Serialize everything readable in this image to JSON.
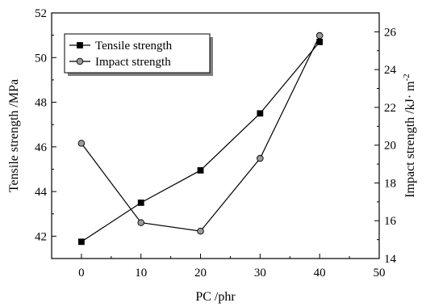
{
  "chart_data": {
    "type": "line",
    "x": [
      0,
      10,
      20,
      30,
      40
    ],
    "xlabel": "PC /phr",
    "xlim": [
      -5,
      50
    ],
    "xticks": [
      "0",
      "10",
      "20",
      "30",
      "40",
      "50"
    ],
    "y_left": {
      "label": "Tensile strength /MPa",
      "lim": [
        41,
        52
      ],
      "ticks": [
        "42",
        "44",
        "46",
        "48",
        "50",
        "52"
      ]
    },
    "y_right": {
      "label_main": "Impact strength /kJ· m",
      "label_sup": "-2",
      "lim": [
        14,
        27
      ],
      "ticks": [
        "14",
        "16",
        "18",
        "20",
        "22",
        "24",
        "26"
      ]
    },
    "series": [
      {
        "name": "Tensile strength",
        "axis": "left",
        "marker": "square",
        "color": "#000000",
        "values": [
          41.75,
          43.5,
          44.95,
          47.5,
          50.7
        ]
      },
      {
        "name": "Impact strength",
        "axis": "right",
        "marker": "circle",
        "color": "#9a9a9a",
        "values": [
          20.1,
          15.9,
          15.45,
          19.3,
          25.8
        ]
      }
    ],
    "legend": {
      "position": "top-left"
    },
    "grid": false
  }
}
